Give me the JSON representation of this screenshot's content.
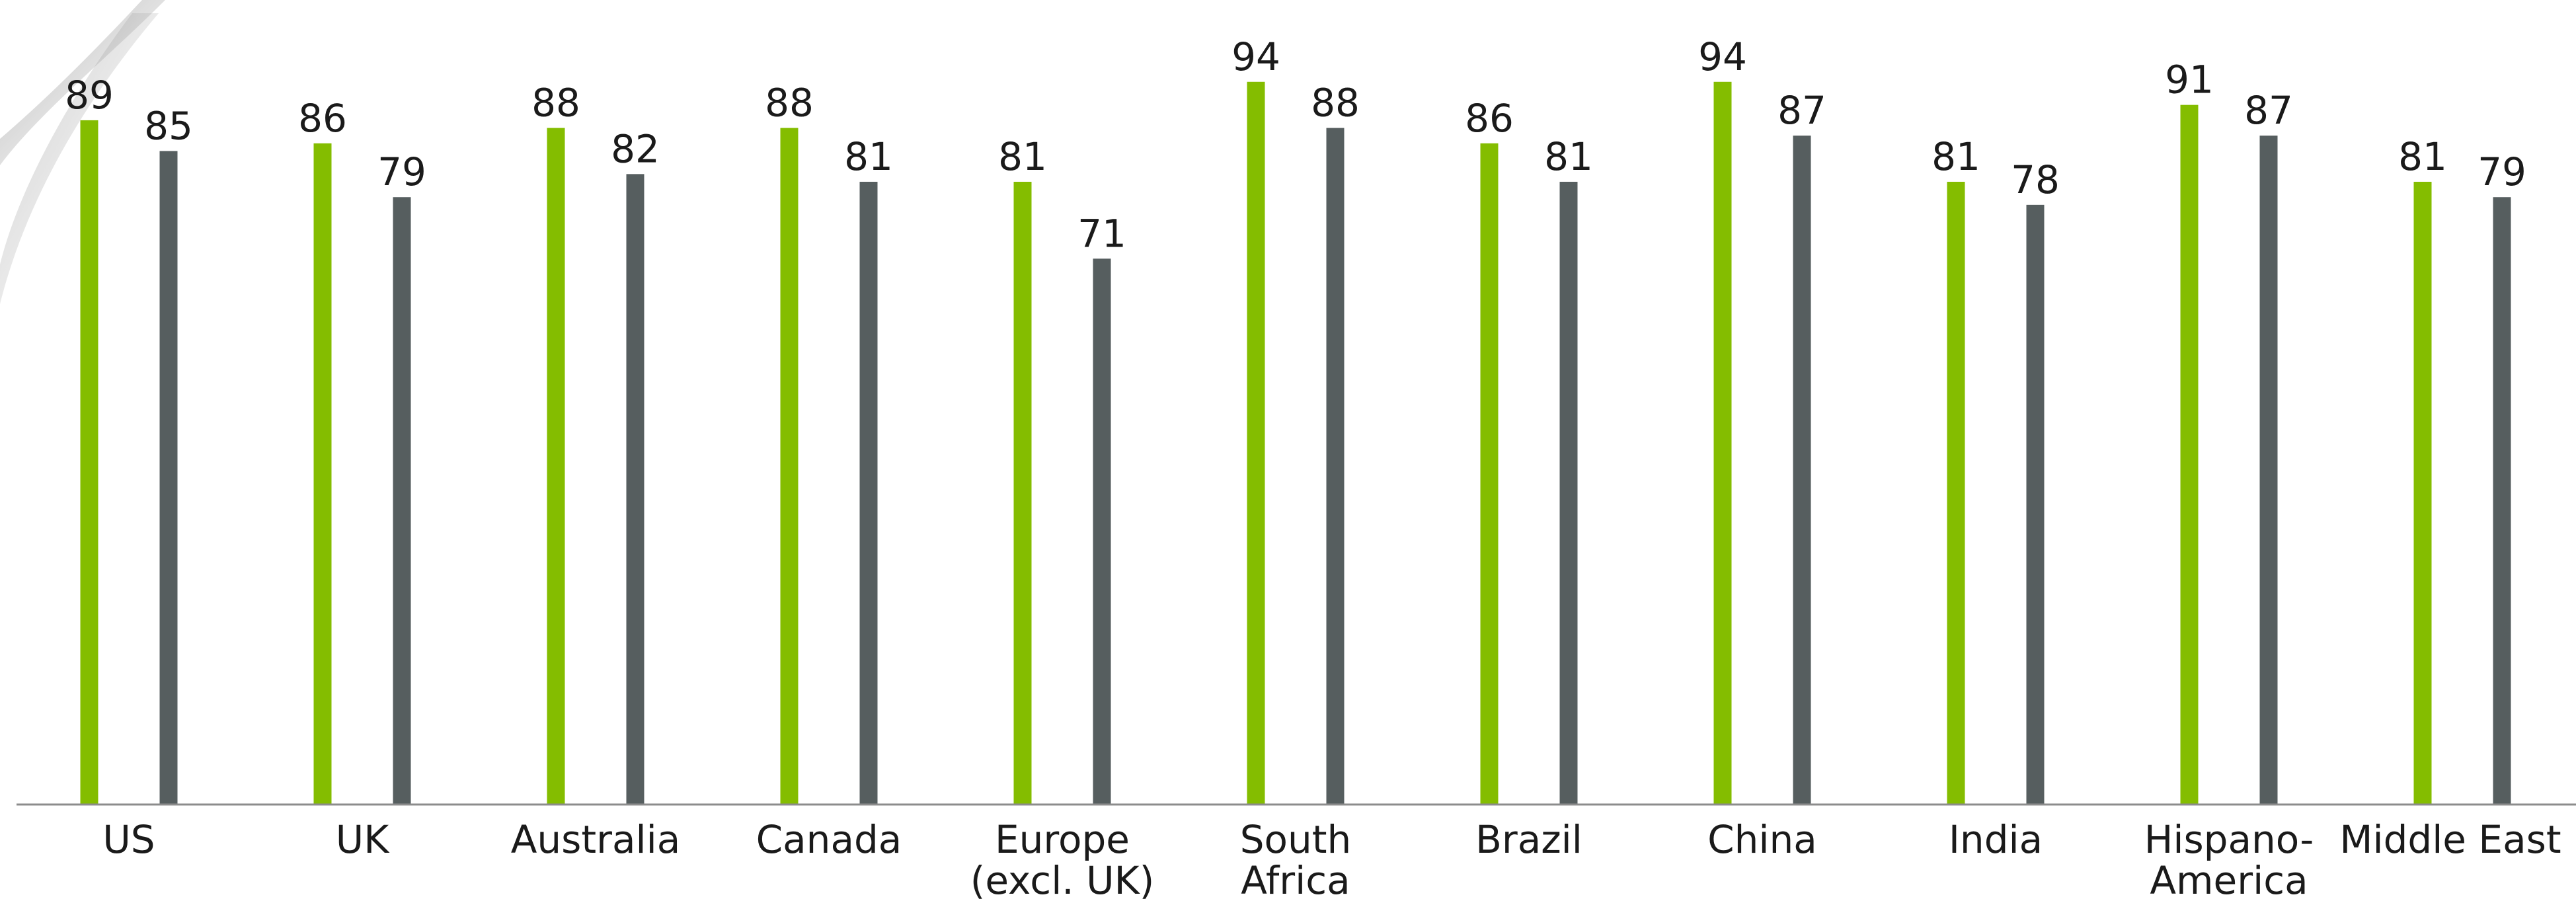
{
  "chart_data": {
    "type": "bar",
    "title": "",
    "xlabel": "",
    "ylabel": "",
    "categories": [
      [
        "US"
      ],
      [
        "UK"
      ],
      [
        "Australia"
      ],
      [
        "Canada"
      ],
      [
        "Europe",
        "(excl. UK)"
      ],
      [
        "South",
        "Africa"
      ],
      [
        "Brazil"
      ],
      [
        "China"
      ],
      [
        "India"
      ],
      [
        "Hispano-",
        "America"
      ],
      [
        "Middle East"
      ]
    ],
    "series": [
      {
        "values": [
          89,
          86,
          88,
          88,
          81,
          94,
          86,
          94,
          81,
          91,
          81
        ],
        "color": "#84bd00"
      },
      {
        "values": [
          85,
          79,
          82,
          81,
          71,
          88,
          81,
          87,
          78,
          87,
          79
        ],
        "color": "#565e5f"
      }
    ],
    "ylim": [
      0,
      100
    ],
    "grid": false,
    "legend": "none",
    "axis_color": "#8c8c8c",
    "show_data_labels": true
  }
}
